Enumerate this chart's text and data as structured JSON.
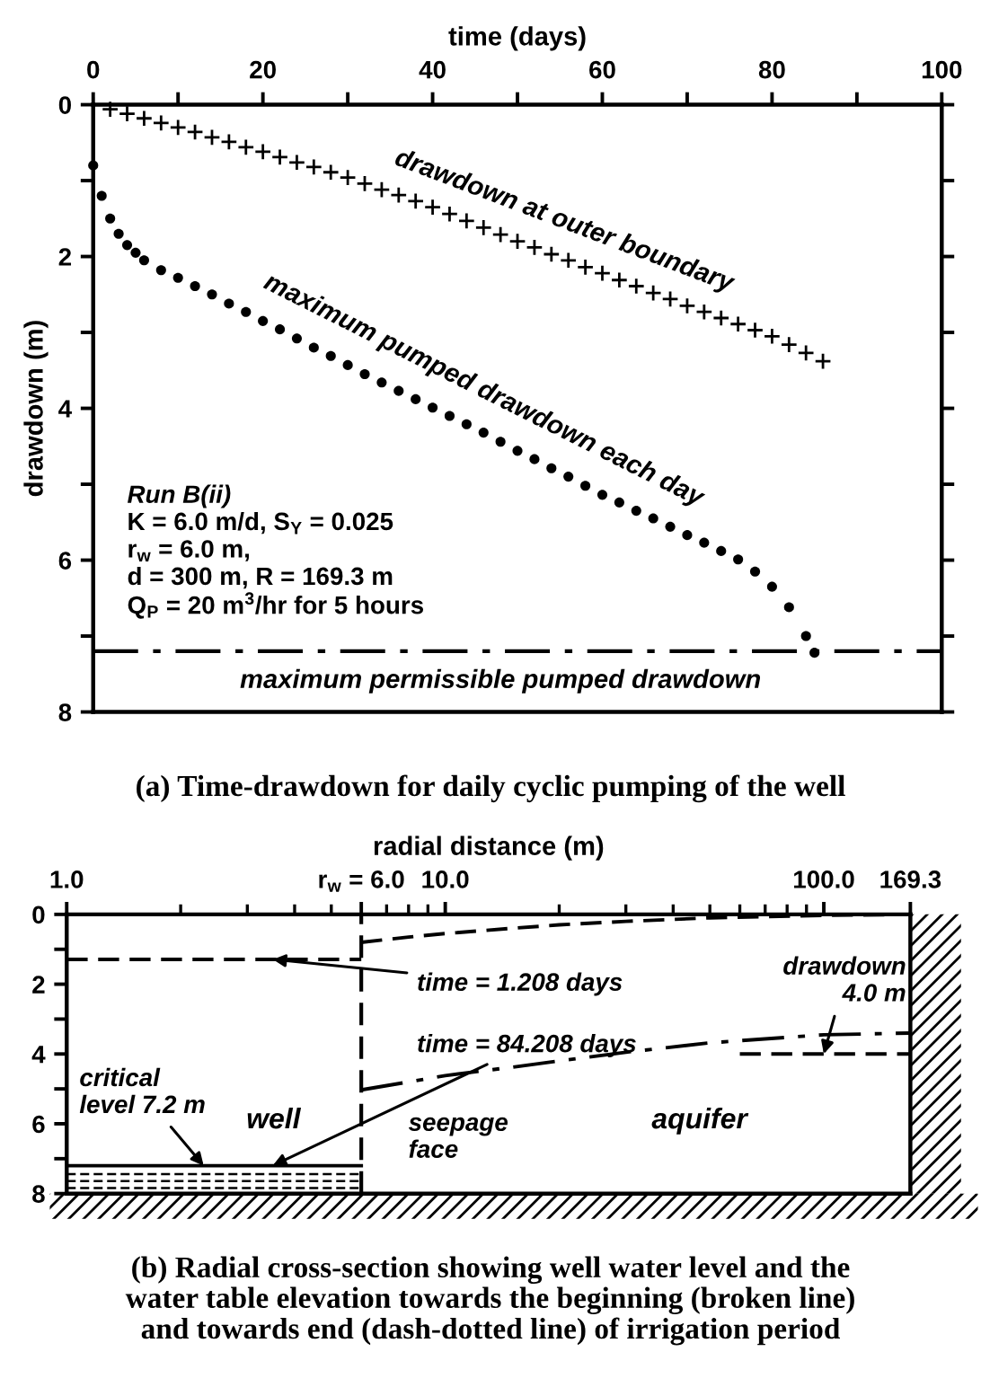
{
  "chart_data": [
    {
      "type": "scatter",
      "title": "(a) Time-drawdown for daily cyclic pumping of the well",
      "xlabel": "time (days)",
      "ylabel": "drawdown (m)",
      "xlim": [
        0,
        100
      ],
      "ylim": [
        8,
        0
      ],
      "xticks": [
        0,
        {
          "value": 10,
          "label": null
        },
        20,
        {
          "value": 30,
          "label": null
        },
        40,
        {
          "value": 50,
          "label": null
        },
        60,
        {
          "value": 70,
          "label": null
        },
        80,
        {
          "value": 90,
          "label": null
        },
        100
      ],
      "yticks": [
        0,
        {
          "value": 1,
          "label": null
        },
        2,
        {
          "value": 3,
          "label": null
        },
        4,
        {
          "value": 5,
          "label": null
        },
        6,
        {
          "value": 7,
          "label": null
        },
        8
      ],
      "grid": false,
      "legend": false,
      "series": [
        {
          "name": "drawdown at outer boundary",
          "marker": "cross",
          "color": "#000000",
          "x": [
            0,
            2,
            4,
            6,
            8,
            10,
            12,
            14,
            16,
            18,
            20,
            22,
            24,
            26,
            28,
            30,
            32,
            34,
            36,
            38,
            40,
            42,
            44,
            46,
            48,
            50,
            52,
            54,
            56,
            58,
            60,
            62,
            64,
            66,
            68,
            70,
            72,
            74,
            76,
            78,
            80,
            82,
            84,
            86
          ],
          "values": [
            0,
            0.06,
            0.12,
            0.18,
            0.24,
            0.3,
            0.36,
            0.43,
            0.49,
            0.56,
            0.62,
            0.69,
            0.76,
            0.82,
            0.89,
            0.96,
            1.04,
            1.12,
            1.19,
            1.27,
            1.35,
            1.44,
            1.53,
            1.62,
            1.71,
            1.8,
            1.88,
            1.97,
            2.05,
            2.14,
            2.22,
            2.31,
            2.39,
            2.48,
            2.56,
            2.65,
            2.73,
            2.81,
            2.89,
            2.97,
            3.05,
            3.16,
            3.27,
            3.38
          ]
        },
        {
          "name": "maximum pumped drawdown each day",
          "marker": "circle",
          "color": "#000000",
          "x": [
            0,
            1,
            2,
            3,
            4,
            5,
            6,
            8,
            10,
            12,
            14,
            16,
            18,
            20,
            22,
            24,
            26,
            28,
            30,
            32,
            34,
            36,
            38,
            40,
            42,
            44,
            46,
            48,
            50,
            52,
            54,
            56,
            58,
            60,
            62,
            64,
            66,
            68,
            70,
            72,
            74,
            76,
            78,
            80,
            82,
            84,
            85
          ],
          "values": [
            0.8,
            1.2,
            1.5,
            1.7,
            1.85,
            1.95,
            2.05,
            2.18,
            2.28,
            2.39,
            2.5,
            2.62,
            2.73,
            2.85,
            2.96,
            3.08,
            3.2,
            3.31,
            3.43,
            3.55,
            3.66,
            3.77,
            3.88,
            3.99,
            4.1,
            4.21,
            4.32,
            4.44,
            4.56,
            4.67,
            4.79,
            4.9,
            5.02,
            5.14,
            5.24,
            5.35,
            5.45,
            5.56,
            5.67,
            5.77,
            5.88,
            5.99,
            6.15,
            6.35,
            6.62,
            7.0,
            7.22
          ]
        }
      ],
      "ref_lines": [
        {
          "axis": "y",
          "value": 7.2,
          "label": "maximum permissible pumped drawdown",
          "line_style": "dashdot",
          "color": "#000000"
        }
      ],
      "annotations": [
        "Run B(ii)",
        "K = 6.0 m/d, S$_{Y}$ = 0.025",
        "r$_{w}$ = 6.0 m,",
        "d = 300 m, R = 169.3 m",
        "Q$_{P}$ = 20 m$^{3}$/hr for 5 hours"
      ]
    },
    {
      "type": "line",
      "title": "(b) Radial cross-section showing well water level and the\nwater table elevation towards the beginning (broken line)\nand towards end (dash-dotted line) of irrigation period",
      "xlabel": "radial distance (m)",
      "log": "x",
      "xlim": [
        1,
        169.3
      ],
      "ylim": [
        8,
        0
      ],
      "xticks": [
        {
          "value": 1,
          "label": "1.0"
        },
        {
          "value": 6,
          "label": "r$_{w}$ = 6.0"
        },
        {
          "value": 10,
          "label": "10.0"
        },
        {
          "value": 100,
          "label": "100.0"
        },
        169.3
      ],
      "yticks": [
        0,
        {
          "value": 1,
          "label": null
        },
        2,
        {
          "value": 3,
          "label": null
        },
        4,
        {
          "value": 5,
          "label": null
        },
        6,
        {
          "value": 7,
          "label": null
        },
        8
      ],
      "grid": false,
      "legend": false,
      "series": [
        {
          "line_style": "dashed",
          "color": "#000000",
          "x": [
            1,
            6
          ],
          "values": [
            1.29,
            1.29
          ]
        },
        {
          "line_style": "solid",
          "color": "#000000",
          "x": [
            1,
            6
          ],
          "values": [
            7.2,
            7.2
          ]
        },
        {
          "line_style": "dashed",
          "color": "#000000",
          "x": [
            6,
            8,
            10,
            15,
            20,
            30,
            50,
            100,
            169.3
          ],
          "values": [
            0.8,
            0.65,
            0.55,
            0.4,
            0.3,
            0.2,
            0.1,
            0.03,
            0
          ]
        },
        {
          "line_style": "dashdot",
          "color": "#000000",
          "x": [
            6,
            8,
            10,
            15,
            20,
            30,
            50,
            100,
            169.3
          ],
          "values": [
            5.03,
            4.8,
            4.62,
            4.38,
            4.2,
            3.95,
            3.68,
            3.45,
            3.4
          ]
        },
        {
          "line_style": "dashed",
          "color": "#000000",
          "x": [
            60,
            169.3
          ],
          "values": [
            4.0,
            4.0
          ]
        }
      ],
      "ref_lines": [
        {
          "axis": "x",
          "value": 6,
          "line_style": "dashed",
          "color": "#000000"
        }
      ],
      "annotations": [
        {
          "text": "time = 1.208 days",
          "x": 3.5,
          "y": 1.29
        },
        {
          "text": "time = 84.208 days",
          "x": 3.5,
          "y": 7.2
        },
        {
          "text": "critical\nlevel 7.2 m",
          "x": 2.3,
          "y": 7.2
        },
        {
          "text": "drawdown\n4.0 m",
          "x": 100,
          "y": 4.0
        },
        "well",
        "seepage\nface",
        "aquifer"
      ]
    }
  ]
}
